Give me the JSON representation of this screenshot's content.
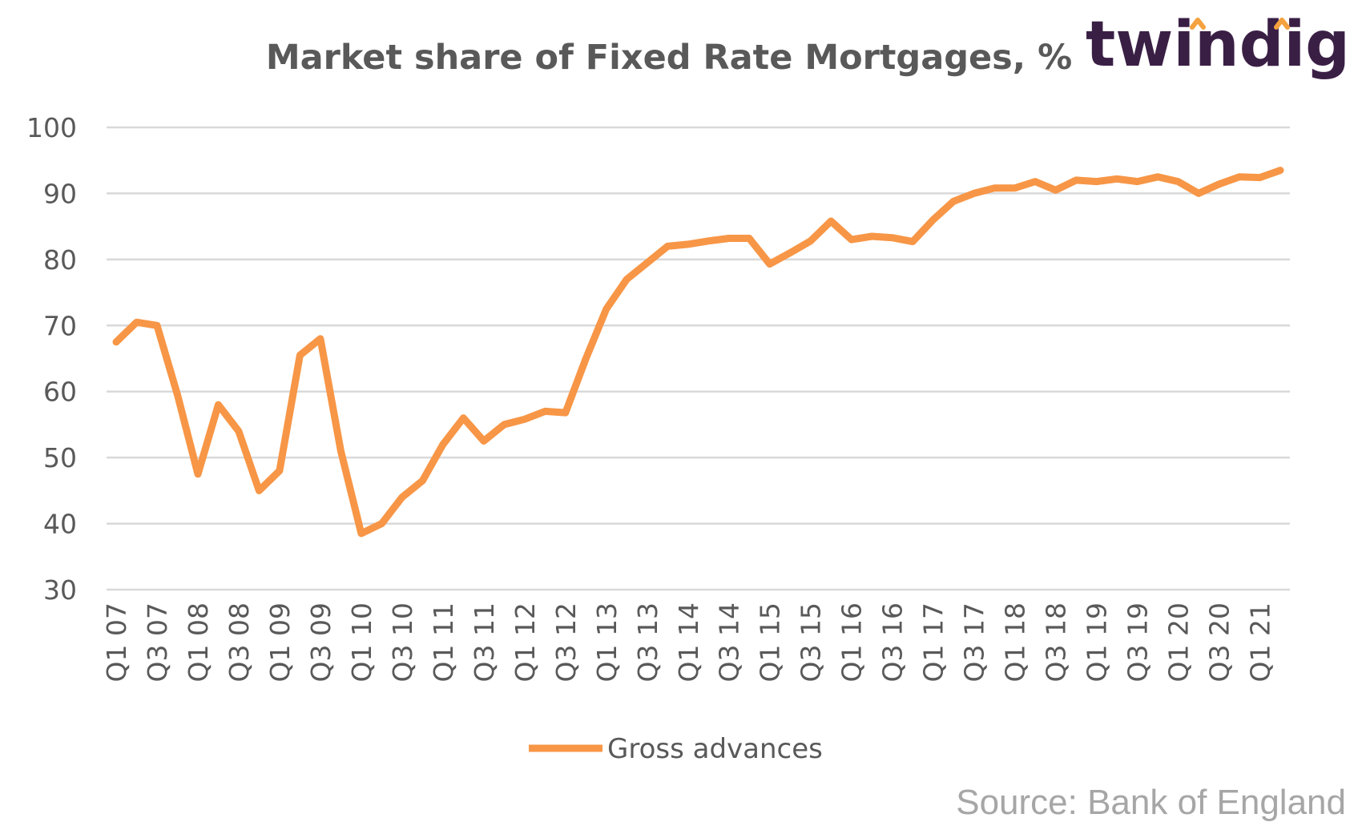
{
  "logo": {
    "text": "twindig",
    "accent_color": "#f4a13f",
    "text_color": "#3a1f45"
  },
  "source": "Source: Bank of England",
  "chart_data": {
    "type": "line",
    "title": "Market share of Fixed Rate Mortgages, %",
    "xlabel": "",
    "ylabel": "",
    "ylim": [
      30,
      100
    ],
    "yticks": [
      100,
      90,
      80,
      70,
      60,
      50,
      40,
      30
    ],
    "grid": true,
    "legend_position": "bottom",
    "x": [
      "Q1 07",
      "Q2 07",
      "Q3 07",
      "Q4 07",
      "Q1 08",
      "Q2 08",
      "Q3 08",
      "Q4 08",
      "Q1 09",
      "Q2 09",
      "Q3 09",
      "Q4 09",
      "Q1 10",
      "Q2 10",
      "Q3 10",
      "Q4 10",
      "Q1 11",
      "Q2 11",
      "Q3 11",
      "Q4 11",
      "Q1 12",
      "Q2 12",
      "Q3 12",
      "Q4 12",
      "Q1 13",
      "Q2 13",
      "Q3 13",
      "Q4 13",
      "Q1 14",
      "Q2 14",
      "Q3 14",
      "Q4 14",
      "Q1 15",
      "Q2 15",
      "Q3 15",
      "Q4 15",
      "Q1 16",
      "Q2 16",
      "Q3 16",
      "Q4 16",
      "Q1 17",
      "Q2 17",
      "Q3 17",
      "Q4 17",
      "Q1 18",
      "Q2 18",
      "Q3 18",
      "Q4 18",
      "Q1 19",
      "Q2 19",
      "Q3 19",
      "Q4 19",
      "Q1 20",
      "Q2 20",
      "Q3 20",
      "Q4 20",
      "Q1 21",
      "Q2 21"
    ],
    "x_tick_labels": [
      "Q1 07",
      "Q3 07",
      "Q1 08",
      "Q3 08",
      "Q1 09",
      "Q3 09",
      "Q1 10",
      "Q3 10",
      "Q1 11",
      "Q3 11",
      "Q1 12",
      "Q3 12",
      "Q1 13",
      "Q3 13",
      "Q1 14",
      "Q3 14",
      "Q1 15",
      "Q3 15",
      "Q1 16",
      "Q3 16",
      "Q1 17",
      "Q3 17",
      "Q1 18",
      "Q3 18",
      "Q1 19",
      "Q3 19",
      "Q1 20",
      "Q3 20",
      "Q1 21"
    ],
    "series": [
      {
        "name": "Gross advances",
        "color": "#f79646",
        "values": [
          67.5,
          70.5,
          70,
          59.5,
          47.5,
          58,
          54,
          45,
          48,
          65.5,
          68,
          51,
          38.5,
          40,
          44,
          46.5,
          52,
          56,
          52.5,
          55,
          55.8,
          57,
          56.8,
          65,
          72.5,
          77,
          79.5,
          82,
          82.3,
          82.8,
          83.2,
          83.2,
          79.3,
          81,
          82.8,
          85.8,
          83,
          83.5,
          83.3,
          82.7,
          86,
          88.8,
          90,
          90.8,
          90.8,
          91.8,
          90.5,
          92,
          91.8,
          92.2,
          91.8,
          92.5,
          91.8,
          90,
          91.4,
          92.5,
          92.4,
          93.5
        ]
      }
    ]
  }
}
